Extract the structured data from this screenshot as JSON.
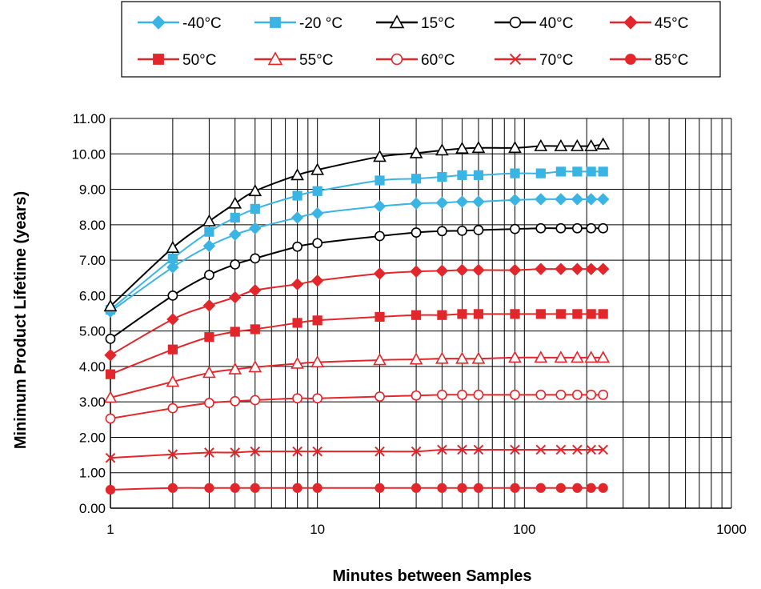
{
  "chart_data": {
    "type": "line",
    "xlabel": "Minutes between Samples",
    "ylabel": "Minimum Product Lifetime (years)",
    "x_scale": "log",
    "xlim": [
      1,
      1000
    ],
    "ylim": [
      0,
      11
    ],
    "x_ticks": [
      "1",
      "10",
      "100",
      "1000"
    ],
    "y_ticks": [
      "0.00",
      "1.00",
      "2.00",
      "3.00",
      "4.00",
      "5.00",
      "6.00",
      "7.00",
      "8.00",
      "9.00",
      "10.00",
      "11.00"
    ],
    "grid": true,
    "legend_position": "top",
    "x": [
      1,
      2,
      3,
      4,
      5,
      8,
      10,
      20,
      30,
      40,
      50,
      60,
      90,
      120,
      150,
      180,
      210,
      240
    ],
    "series": [
      {
        "name": "-40°C",
        "color": "#3ab4e2",
        "marker": "diamond-filled",
        "values": [
          5.55,
          6.8,
          7.4,
          7.72,
          7.9,
          8.2,
          8.32,
          8.52,
          8.6,
          8.62,
          8.65,
          8.65,
          8.7,
          8.72,
          8.72,
          8.72,
          8.72,
          8.72
        ]
      },
      {
        "name": "-20 °C",
        "color": "#3ab4e2",
        "marker": "square-filled",
        "values": [
          5.6,
          7.05,
          7.8,
          8.2,
          8.45,
          8.82,
          8.95,
          9.25,
          9.3,
          9.35,
          9.4,
          9.4,
          9.45,
          9.45,
          9.5,
          9.5,
          9.5,
          9.5
        ]
      },
      {
        "name": "15°C",
        "color": "#000000",
        "marker": "triangle-open",
        "values": [
          5.7,
          7.35,
          8.1,
          8.6,
          8.95,
          9.4,
          9.55,
          9.92,
          10.02,
          10.1,
          10.15,
          10.17,
          10.17,
          10.22,
          10.22,
          10.22,
          10.22,
          10.27
        ]
      },
      {
        "name": "40°C",
        "color": "#000000",
        "marker": "circle-open",
        "values": [
          4.78,
          6.0,
          6.58,
          6.88,
          7.05,
          7.38,
          7.48,
          7.68,
          7.78,
          7.82,
          7.83,
          7.85,
          7.88,
          7.9,
          7.9,
          7.9,
          7.9,
          7.9
        ]
      },
      {
        "name": "45°C",
        "color": "#e3262b",
        "marker": "diamond-filled",
        "values": [
          4.32,
          5.33,
          5.72,
          5.95,
          6.15,
          6.32,
          6.42,
          6.62,
          6.68,
          6.7,
          6.72,
          6.72,
          6.72,
          6.75,
          6.75,
          6.75,
          6.75,
          6.75
        ]
      },
      {
        "name": "50°C",
        "color": "#e3262b",
        "marker": "square-filled",
        "values": [
          3.78,
          4.48,
          4.83,
          4.98,
          5.05,
          5.23,
          5.3,
          5.4,
          5.45,
          5.45,
          5.48,
          5.48,
          5.48,
          5.48,
          5.48,
          5.48,
          5.48,
          5.48
        ]
      },
      {
        "name": "55°C",
        "color": "#e3262b",
        "marker": "triangle-open",
        "values": [
          3.12,
          3.57,
          3.82,
          3.92,
          3.98,
          4.08,
          4.12,
          4.18,
          4.2,
          4.22,
          4.22,
          4.22,
          4.25,
          4.25,
          4.25,
          4.25,
          4.25,
          4.25
        ]
      },
      {
        "name": "60°C",
        "color": "#e3262b",
        "marker": "circle-open",
        "values": [
          2.53,
          2.82,
          2.97,
          3.02,
          3.05,
          3.1,
          3.1,
          3.15,
          3.18,
          3.2,
          3.2,
          3.2,
          3.2,
          3.2,
          3.2,
          3.2,
          3.2,
          3.2
        ]
      },
      {
        "name": "70°C",
        "color": "#e3262b",
        "marker": "x",
        "values": [
          1.42,
          1.52,
          1.57,
          1.57,
          1.6,
          1.6,
          1.6,
          1.6,
          1.6,
          1.65,
          1.65,
          1.65,
          1.65,
          1.65,
          1.65,
          1.65,
          1.65,
          1.65
        ]
      },
      {
        "name": "85°C",
        "color": "#e3262b",
        "marker": "circle-filled",
        "values": [
          0.52,
          0.57,
          0.57,
          0.57,
          0.57,
          0.57,
          0.57,
          0.57,
          0.57,
          0.57,
          0.57,
          0.57,
          0.57,
          0.57,
          0.57,
          0.57,
          0.57,
          0.57
        ]
      }
    ]
  }
}
